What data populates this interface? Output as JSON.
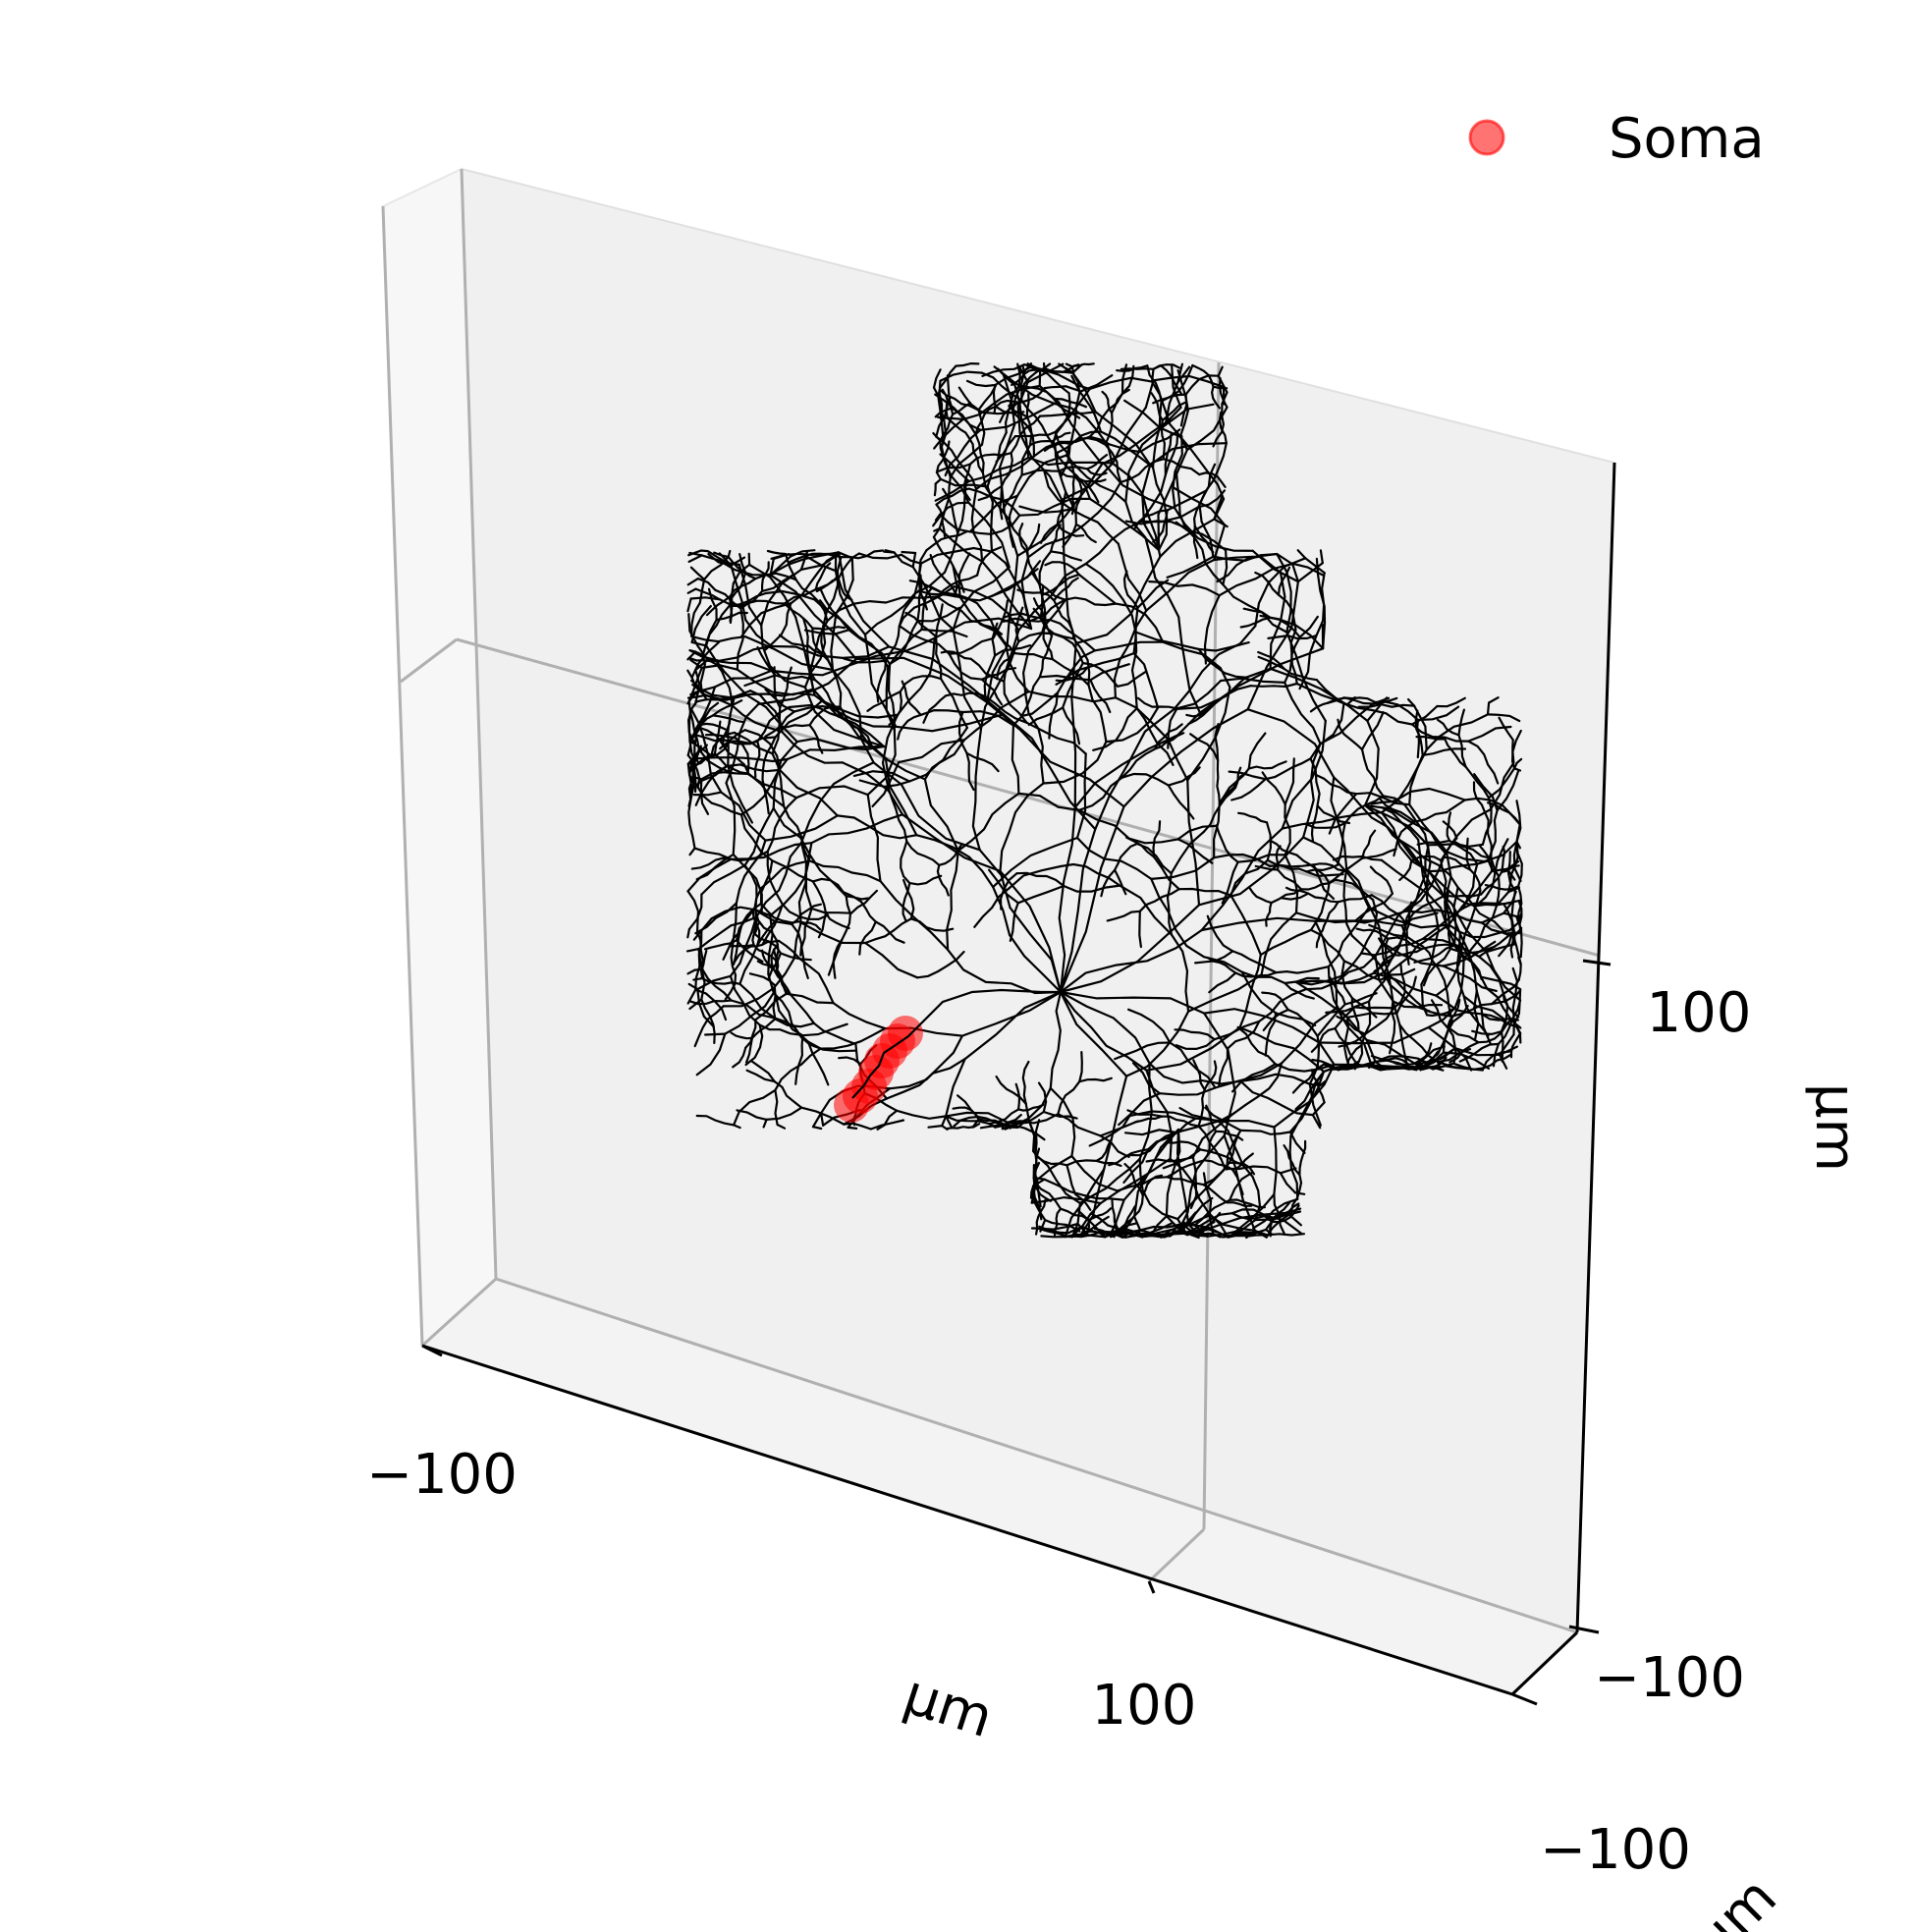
{
  "chart_data": {
    "type": "3d-line-scatter",
    "title": "",
    "legend": {
      "placement": "top-right",
      "entries": [
        {
          "label": "Soma",
          "marker": "circle",
          "color": "#ff0000",
          "alpha": 0.55
        }
      ]
    },
    "axes": {
      "x": {
        "label": "μm",
        "ticks": [
          "−100",
          "100"
        ]
      },
      "y": {
        "label": "μm",
        "ticks": [
          "−100"
        ]
      },
      "z": {
        "label": "μm",
        "ticks": [
          "−100",
          "100"
        ]
      }
    },
    "grid": true,
    "series": [
      {
        "name": "Soma",
        "kind": "scatter",
        "color": "#ff0000"
      },
      {
        "kind": "line",
        "color": "#000000"
      }
    ]
  }
}
